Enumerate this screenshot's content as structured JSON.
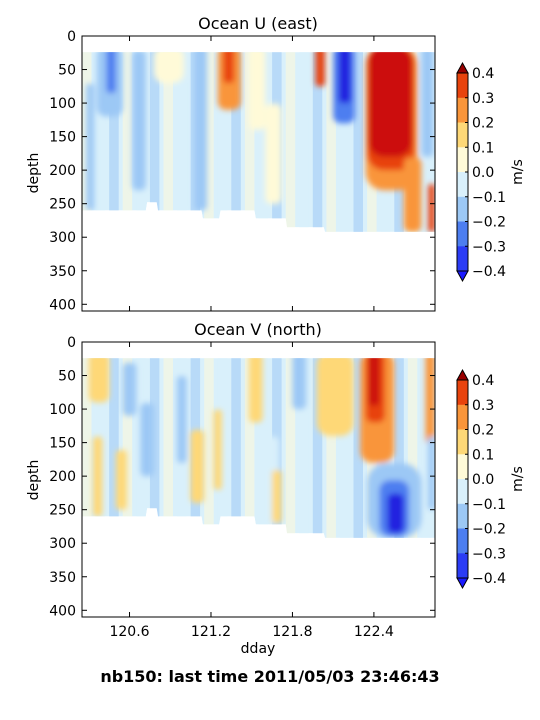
{
  "figure": {
    "suptitle": "nb150: last time 2011/05/03 23:46:43"
  },
  "colorbar": {
    "label": "m/s",
    "ticks": [
      "0.4",
      "0.3",
      "0.2",
      "0.1",
      "0.0",
      "−0.1",
      "−0.2",
      "−0.3",
      "−0.4"
    ],
    "levels": [
      -0.4,
      -0.3,
      -0.2,
      -0.1,
      0.0,
      0.1,
      0.2,
      0.3,
      0.4
    ],
    "under_color": "#1a1aff",
    "over_color": "#990000",
    "colors": [
      "#2b3cf5",
      "#4d7ef0",
      "#9cc8f5",
      "#d9f0fb",
      "#fffad8",
      "#fed877",
      "#f9953a",
      "#e8430d"
    ],
    "extremes": {
      "strong_negative": "#2020e0",
      "strong_positive": "#cc1010"
    }
  },
  "chart_data": [
    {
      "type": "heatmap",
      "title": "Ocean U (east)",
      "xlabel": "",
      "ylabel": "depth",
      "xlim": [
        120.25,
        122.85
      ],
      "ylim": [
        410,
        0
      ],
      "yticks": [
        "0",
        "50",
        "100",
        "150",
        "200",
        "250",
        "300",
        "350",
        "400"
      ],
      "ytick_values": [
        0,
        50,
        100,
        150,
        200,
        250,
        300,
        350,
        400
      ],
      "xticks": [
        120.6,
        121.2,
        121.8,
        122.4
      ],
      "xtick_labels_shown": false,
      "data_depth_top": 24,
      "bottom_depth_profile": [
        {
          "x": 120.25,
          "depth": 260
        },
        {
          "x": 120.72,
          "depth": 260
        },
        {
          "x": 120.73,
          "depth": 248
        },
        {
          "x": 120.8,
          "depth": 248
        },
        {
          "x": 120.81,
          "depth": 260
        },
        {
          "x": 121.13,
          "depth": 260
        },
        {
          "x": 121.14,
          "depth": 272
        },
        {
          "x": 121.26,
          "depth": 272
        },
        {
          "x": 121.27,
          "depth": 260
        },
        {
          "x": 121.52,
          "depth": 260
        },
        {
          "x": 121.53,
          "depth": 272
        },
        {
          "x": 121.75,
          "depth": 272
        },
        {
          "x": 121.76,
          "depth": 285
        },
        {
          "x": 122.03,
          "depth": 285
        },
        {
          "x": 122.04,
          "depth": 292
        },
        {
          "x": 122.85,
          "depth": 292
        }
      ],
      "features": [
        {
          "x": 120.36,
          "x_end": 120.55,
          "depth_top": 24,
          "depth_bottom": 120,
          "value": -0.15
        },
        {
          "x": 120.43,
          "x_end": 120.5,
          "depth_top": 24,
          "depth_bottom": 85,
          "value": -0.25
        },
        {
          "x": 120.28,
          "x_end": 120.34,
          "depth_top": 80,
          "depth_bottom": 260,
          "value": -0.15
        },
        {
          "x": 120.62,
          "x_end": 120.72,
          "depth_top": 30,
          "depth_bottom": 230,
          "value": -0.15
        },
        {
          "x": 121.08,
          "x_end": 121.17,
          "depth_top": 24,
          "depth_bottom": 260,
          "value": -0.15
        },
        {
          "x": 120.78,
          "x_end": 121.0,
          "depth_top": 24,
          "depth_bottom": 70,
          "value": 0.05
        },
        {
          "x": 121.25,
          "x_end": 121.42,
          "depth_top": 24,
          "depth_bottom": 110,
          "value": 0.22
        },
        {
          "x": 121.29,
          "x_end": 121.37,
          "depth_top": 24,
          "depth_bottom": 70,
          "value": 0.32
        },
        {
          "x": 121.48,
          "x_end": 121.6,
          "depth_top": 24,
          "depth_bottom": 140,
          "value": 0.05
        },
        {
          "x": 121.6,
          "x_end": 121.72,
          "depth_top": 110,
          "depth_bottom": 250,
          "value": 0.05
        },
        {
          "x": 121.97,
          "x_end": 122.04,
          "depth_top": 24,
          "depth_bottom": 75,
          "value": 0.3
        },
        {
          "x": 122.1,
          "x_end": 122.26,
          "depth_top": 24,
          "depth_bottom": 130,
          "value": -0.28
        },
        {
          "x": 122.14,
          "x_end": 122.23,
          "depth_top": 24,
          "depth_bottom": 100,
          "value": -0.45
        },
        {
          "x": 122.34,
          "x_end": 122.72,
          "depth_top": 24,
          "depth_bottom": 230,
          "value": 0.22
        },
        {
          "x": 122.35,
          "x_end": 122.7,
          "depth_top": 24,
          "depth_bottom": 200,
          "value": 0.32
        },
        {
          "x": 122.36,
          "x_end": 122.68,
          "depth_top": 24,
          "depth_bottom": 180,
          "value": 0.45
        },
        {
          "x": 122.62,
          "x_end": 122.75,
          "depth_top": 190,
          "depth_bottom": 292,
          "value": 0.22
        },
        {
          "x": 122.75,
          "x_end": 122.84,
          "depth_top": 24,
          "depth_bottom": 180,
          "value": -0.15
        },
        {
          "x": 122.8,
          "x_end": 122.85,
          "depth_top": 230,
          "depth_bottom": 292,
          "value": 0.35
        }
      ]
    },
    {
      "type": "heatmap",
      "title": "Ocean V (north)",
      "xlabel": "dday",
      "ylabel": "depth",
      "xlim": [
        120.25,
        122.85
      ],
      "ylim": [
        410,
        0
      ],
      "yticks": [
        "0",
        "50",
        "100",
        "150",
        "200",
        "250",
        "300",
        "350",
        "400"
      ],
      "ytick_values": [
        0,
        50,
        100,
        150,
        200,
        250,
        300,
        350,
        400
      ],
      "xticks": [
        "120.6",
        "121.2",
        "121.8",
        "122.4"
      ],
      "xtick_values": [
        120.6,
        121.2,
        121.8,
        122.4
      ],
      "xtick_labels_shown": true,
      "data_depth_top": 24,
      "bottom_depth_profile": [
        {
          "x": 120.25,
          "depth": 260
        },
        {
          "x": 120.72,
          "depth": 260
        },
        {
          "x": 120.73,
          "depth": 248
        },
        {
          "x": 120.8,
          "depth": 248
        },
        {
          "x": 120.81,
          "depth": 260
        },
        {
          "x": 121.13,
          "depth": 260
        },
        {
          "x": 121.14,
          "depth": 272
        },
        {
          "x": 121.26,
          "depth": 272
        },
        {
          "x": 121.27,
          "depth": 260
        },
        {
          "x": 121.52,
          "depth": 260
        },
        {
          "x": 121.53,
          "depth": 272
        },
        {
          "x": 121.75,
          "depth": 272
        },
        {
          "x": 121.76,
          "depth": 285
        },
        {
          "x": 122.03,
          "depth": 285
        },
        {
          "x": 122.04,
          "depth": 292
        },
        {
          "x": 122.85,
          "depth": 292
        }
      ],
      "features": [
        {
          "x": 120.3,
          "x_end": 120.45,
          "depth_top": 24,
          "depth_bottom": 90,
          "value": 0.15
        },
        {
          "x": 120.55,
          "x_end": 120.65,
          "depth_top": 40,
          "depth_bottom": 110,
          "value": -0.15
        },
        {
          "x": 120.33,
          "x_end": 120.4,
          "depth_top": 150,
          "depth_bottom": 260,
          "value": 0.15
        },
        {
          "x": 120.5,
          "x_end": 120.58,
          "depth_top": 170,
          "depth_bottom": 250,
          "value": 0.15
        },
        {
          "x": 120.68,
          "x_end": 120.78,
          "depth_top": 100,
          "depth_bottom": 200,
          "value": -0.15
        },
        {
          "x": 120.95,
          "x_end": 121.02,
          "depth_top": 60,
          "depth_bottom": 180,
          "value": -0.15
        },
        {
          "x": 121.05,
          "x_end": 121.15,
          "depth_top": 140,
          "depth_bottom": 240,
          "value": 0.15
        },
        {
          "x": 121.22,
          "x_end": 121.28,
          "depth_top": 110,
          "depth_bottom": 220,
          "value": 0.15
        },
        {
          "x": 121.48,
          "x_end": 121.58,
          "depth_top": 24,
          "depth_bottom": 120,
          "value": 0.15
        },
        {
          "x": 121.6,
          "x_end": 121.7,
          "depth_top": 150,
          "depth_bottom": 272,
          "value": -0.05
        },
        {
          "x": 121.65,
          "x_end": 121.72,
          "depth_top": 200,
          "depth_bottom": 270,
          "value": 0.15
        },
        {
          "x": 121.8,
          "x_end": 121.9,
          "depth_top": 24,
          "depth_bottom": 100,
          "value": -0.15
        },
        {
          "x": 121.98,
          "x_end": 122.25,
          "depth_top": 24,
          "depth_bottom": 140,
          "value": 0.12
        },
        {
          "x": 122.3,
          "x_end": 122.55,
          "depth_top": 24,
          "depth_bottom": 180,
          "value": 0.2
        },
        {
          "x": 122.34,
          "x_end": 122.48,
          "depth_top": 24,
          "depth_bottom": 120,
          "value": 0.3
        },
        {
          "x": 122.36,
          "x_end": 122.44,
          "depth_top": 24,
          "depth_bottom": 95,
          "value": 0.45
        },
        {
          "x": 122.35,
          "x_end": 122.75,
          "depth_top": 190,
          "depth_bottom": 292,
          "value": -0.18
        },
        {
          "x": 122.44,
          "x_end": 122.66,
          "depth_top": 215,
          "depth_bottom": 290,
          "value": -0.3
        },
        {
          "x": 122.5,
          "x_end": 122.62,
          "depth_top": 235,
          "depth_bottom": 285,
          "value": -0.42
        },
        {
          "x": 122.78,
          "x_end": 122.85,
          "depth_top": 24,
          "depth_bottom": 150,
          "value": 0.25
        },
        {
          "x": 122.8,
          "x_end": 122.85,
          "depth_top": 150,
          "depth_bottom": 250,
          "value": -0.15
        }
      ]
    }
  ]
}
